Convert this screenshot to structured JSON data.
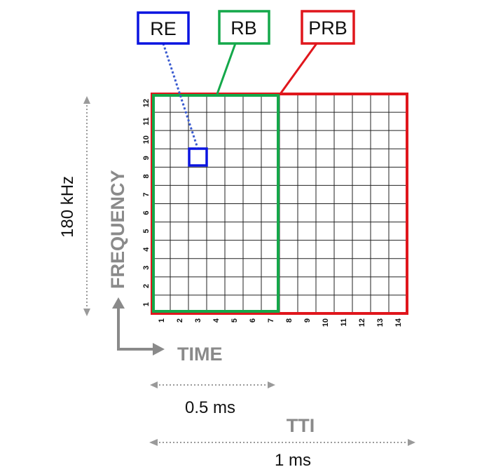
{
  "labels": {
    "re": "RE",
    "rb": "RB",
    "prb": "PRB"
  },
  "axes": {
    "frequency": "FREQUENCY",
    "time": "TIME",
    "frequency_ticks": [
      "1",
      "2",
      "3",
      "4",
      "5",
      "6",
      "7",
      "8",
      "9",
      "10",
      "11",
      "12"
    ],
    "time_ticks": [
      "1",
      "2",
      "3",
      "4",
      "5",
      "6",
      "7",
      "8",
      "9",
      "10",
      "11",
      "12",
      "13",
      "14"
    ]
  },
  "dimensions": {
    "bandwidth": "180 kHz",
    "half_slot": "0.5 ms",
    "tti": "TTI",
    "tti_duration": "1 ms"
  },
  "colors": {
    "re": "#0a14e0",
    "rb": "#14a84a",
    "prb": "#e0161c",
    "grid": "#222222",
    "axis_text": "#8a8a8a",
    "dotted": "#9a9a9a",
    "re_leader": "#3a5bd0"
  }
}
